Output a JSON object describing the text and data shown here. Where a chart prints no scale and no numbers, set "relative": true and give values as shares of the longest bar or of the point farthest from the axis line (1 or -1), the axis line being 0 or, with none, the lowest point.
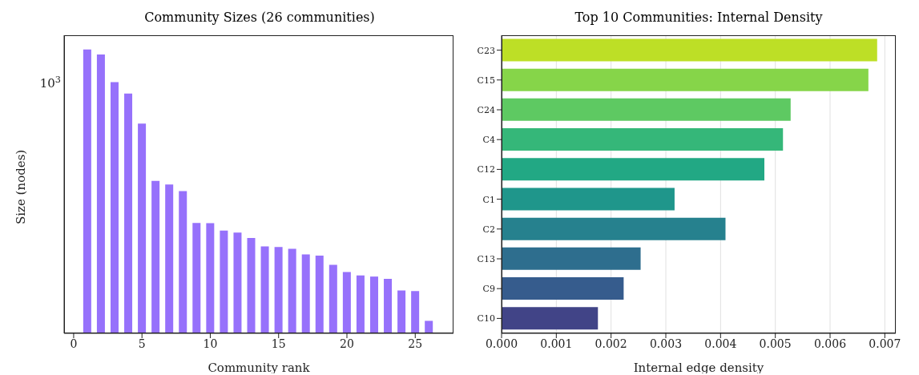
{
  "chart_data": [
    {
      "type": "bar",
      "title": "Community Sizes (26 communities)",
      "xlabel": "Community rank",
      "ylabel": "Size (nodes)",
      "relative": true,
      "grid": false,
      "color": "#9671fb",
      "x": [
        1,
        2,
        3,
        4,
        5,
        6,
        7,
        8,
        9,
        10,
        11,
        12,
        13,
        14,
        15,
        16,
        17,
        18,
        19,
        20,
        21,
        22,
        23,
        24,
        25,
        26
      ],
      "values": [
        1,
        0.982,
        0.885,
        0.845,
        0.739,
        0.537,
        0.524,
        0.501,
        0.389,
        0.388,
        0.362,
        0.355,
        0.336,
        0.306,
        0.304,
        0.298,
        0.278,
        0.274,
        0.241,
        0.216,
        0.204,
        0.2,
        0.192,
        0.151,
        0.149,
        0.044
      ],
      "xlim": [
        -0.7,
        27.8
      ],
      "xticks": [
        0,
        5,
        10,
        15,
        20,
        25
      ],
      "annotations": [
        "10$^{3}$"
      ]
    },
    {
      "type": "bar",
      "orientation": "horizontal",
      "title": "Top 10 Communities: Internal Density",
      "xlabel": "Internal edge density",
      "grid": "x",
      "categories": [
        "C23",
        "C15",
        "C24",
        "C4",
        "C12",
        "C1",
        "C2",
        "C13",
        "C9",
        "C10"
      ],
      "values": [
        0.00686,
        0.0067,
        0.00528,
        0.00514,
        0.0048,
        0.00316,
        0.00409,
        0.00254,
        0.00223,
        0.00176
      ],
      "colors": [
        "#bddf26",
        "#86d549",
        "#5ec962",
        "#35b779",
        "#22a884",
        "#1f968b",
        "#26818e",
        "#2e6e8e",
        "#365c8d",
        "#414487"
      ],
      "xlim": [
        0,
        0.0072
      ],
      "xticks": [
        {
          "value": 0,
          "label": "0.000"
        },
        {
          "value": 0.001,
          "label": "0.001"
        },
        {
          "value": 0.002,
          "label": "0.002"
        },
        {
          "value": 0.003,
          "label": "0.003"
        },
        {
          "value": 0.004,
          "label": "0.004"
        },
        {
          "value": 0.005,
          "label": "0.005"
        },
        {
          "value": 0.006,
          "label": "0.006"
        },
        {
          "value": 0.007,
          "label": "0.007"
        }
      ]
    }
  ]
}
